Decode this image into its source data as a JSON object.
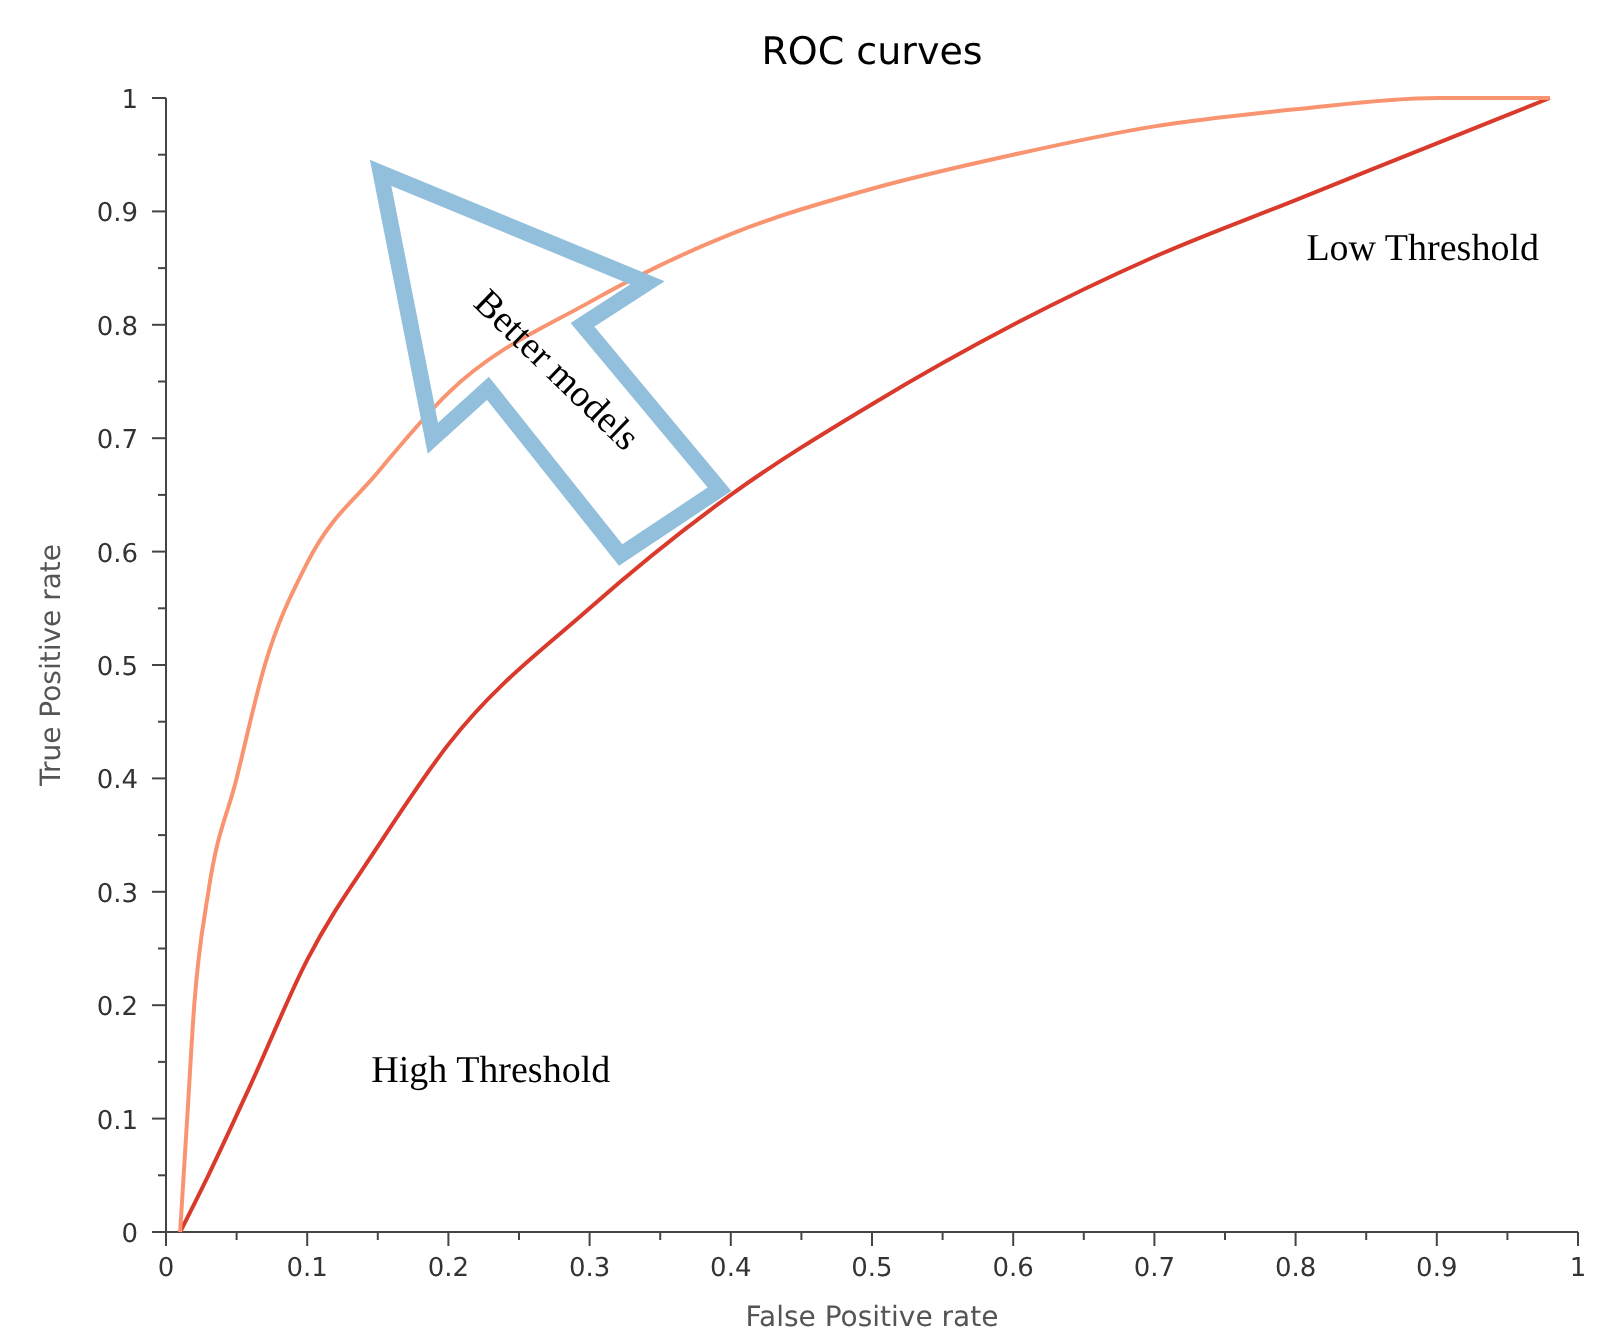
{
  "chart_data": {
    "type": "line",
    "title": "ROC curves",
    "xlabel": "False Positive rate",
    "ylabel": "True Positive rate",
    "xlim": [
      0,
      1
    ],
    "ylim": [
      0,
      1
    ],
    "xticks": [
      0,
      {
        "value": 0.05,
        "label": null
      },
      0.1,
      {
        "value": 0.15,
        "label": null
      },
      0.2,
      {
        "value": 0.25,
        "label": null
      },
      0.3,
      {
        "value": 0.35,
        "label": null
      },
      0.4,
      {
        "value": 0.45,
        "label": null
      },
      0.5,
      {
        "value": 0.55,
        "label": null
      },
      0.6,
      {
        "value": 0.65,
        "label": null
      },
      0.7,
      {
        "value": 0.75,
        "label": null
      },
      0.8,
      {
        "value": 0.85,
        "label": null
      },
      0.9,
      {
        "value": 0.95,
        "label": null
      },
      1
    ],
    "yticks": [
      0,
      {
        "value": 0.05,
        "label": null
      },
      0.1,
      {
        "value": 0.15,
        "label": null
      },
      0.2,
      {
        "value": 0.25,
        "label": null
      },
      0.3,
      {
        "value": 0.35,
        "label": null
      },
      0.4,
      {
        "value": 0.45,
        "label": null
      },
      0.5,
      {
        "value": 0.55,
        "label": null
      },
      0.6,
      {
        "value": 0.65,
        "label": null
      },
      0.7,
      {
        "value": 0.75,
        "label": null
      },
      0.8,
      {
        "value": 0.85,
        "label": null
      },
      0.9,
      {
        "value": 0.95,
        "label": null
      },
      1
    ],
    "grid": false,
    "marker": "none",
    "line_style": "solid",
    "series": [
      {
        "color": "#d93a2b",
        "x": [
          0.01,
          0.03,
          0.06,
          0.1,
          0.15,
          0.2,
          0.3,
          0.4,
          0.5,
          0.6,
          0.7,
          0.8,
          0.9,
          0.98
        ],
        "values": [
          0,
          0.05,
          0.13,
          0.24,
          0.34,
          0.43,
          0.55,
          0.65,
          0.73,
          0.8,
          0.86,
          0.91,
          0.96,
          1
        ]
      },
      {
        "color": "#f99471",
        "x": [
          0.01,
          0.015,
          0.02,
          0.03,
          0.05,
          0.07,
          0.1,
          0.15,
          0.2,
          0.3,
          0.4,
          0.5,
          0.6,
          0.7,
          0.8,
          0.9,
          0.98
        ],
        "values": [
          0,
          0.1,
          0.2,
          0.3,
          0.4,
          0.5,
          0.59,
          0.67,
          0.74,
          0.82,
          0.88,
          0.92,
          0.95,
          0.975,
          0.99,
          1,
          1
        ]
      }
    ],
    "annotations": [
      "Low Threshold",
      "High Threshold",
      "Better models"
    ]
  }
}
